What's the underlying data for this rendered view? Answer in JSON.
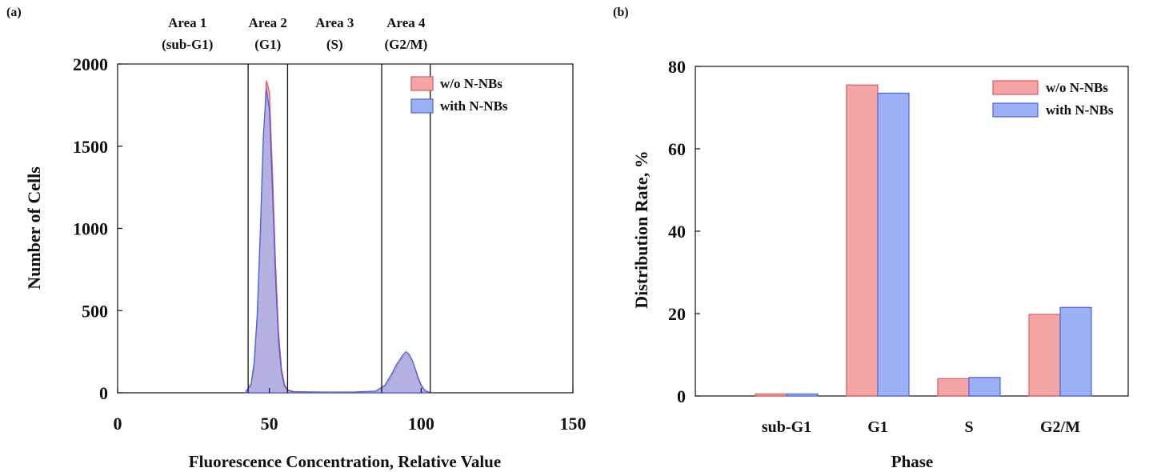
{
  "colors": {
    "without": "#f4a6a6",
    "without_edge": "#e05a5a",
    "with": "#9db0f5",
    "with_edge": "#4a63e0",
    "overlap": "#8a73c8",
    "axis": "#111111"
  },
  "chart_data": [
    {
      "panel": "(a)",
      "type": "area",
      "xlabel": "Fluorescence Concentration, Relative Value",
      "ylabel": "Number of Cells",
      "xlim": [
        0,
        150
      ],
      "ylim": [
        0,
        2000
      ],
      "xticks": [
        0,
        50,
        100,
        150
      ],
      "yticks": [
        0,
        500,
        1000,
        1500,
        2000
      ],
      "gates": [
        43,
        56,
        87,
        103
      ],
      "areas": [
        {
          "line1": "Area 1",
          "line2": "(sub-G1)",
          "center": 23
        },
        {
          "line1": "Area 2",
          "line2": "(G1)",
          "center": 49.5
        },
        {
          "line1": "Area 3",
          "line2": "(S)",
          "center": 71.5
        },
        {
          "line1": "Area 4",
          "line2": "(G2/M)",
          "center": 95
        }
      ],
      "legend_position": "top-right",
      "series": [
        {
          "name": "w/o N-NBs",
          "x": [
            42,
            44,
            45,
            46,
            47,
            48,
            49,
            50,
            51,
            52,
            53,
            54,
            55,
            56,
            58,
            62,
            70,
            78,
            85,
            88,
            90,
            92,
            94,
            95,
            96,
            97,
            98,
            99,
            100,
            101,
            102,
            103,
            104
          ],
          "y": [
            0,
            40,
            150,
            420,
            900,
            1500,
            1900,
            1830,
            1350,
            800,
            380,
            150,
            50,
            18,
            8,
            6,
            4,
            5,
            8,
            35,
            90,
            160,
            215,
            235,
            225,
            195,
            150,
            95,
            50,
            20,
            8,
            3,
            0
          ]
        },
        {
          "name": "with N-NBs",
          "x": [
            42,
            44,
            45,
            46,
            47,
            48,
            49,
            50,
            51,
            52,
            53,
            54,
            55,
            56,
            58,
            62,
            70,
            78,
            85,
            88,
            90,
            92,
            94,
            95,
            96,
            97,
            98,
            99,
            100,
            101,
            102,
            103,
            104
          ],
          "y": [
            0,
            55,
            190,
            480,
            980,
            1560,
            1850,
            1720,
            1230,
            700,
            320,
            120,
            40,
            14,
            6,
            5,
            4,
            5,
            10,
            45,
            105,
            175,
            230,
            250,
            235,
            200,
            150,
            90,
            45,
            18,
            6,
            2,
            0
          ]
        }
      ]
    },
    {
      "panel": "(b)",
      "type": "bar",
      "xlabel": "Phase",
      "ylabel": "Distribution Rate, %",
      "ylim": [
        0,
        80
      ],
      "yticks": [
        0,
        20,
        40,
        60,
        80
      ],
      "categories": [
        "sub-G1",
        "G1",
        "S",
        "G2/M"
      ],
      "legend_position": "top-right",
      "series": [
        {
          "name": "w/o N-NBs",
          "values": [
            0.5,
            75.5,
            4.2,
            19.8
          ]
        },
        {
          "name": "with N-NBs",
          "values": [
            0.5,
            73.5,
            4.5,
            21.5
          ]
        }
      ]
    }
  ]
}
